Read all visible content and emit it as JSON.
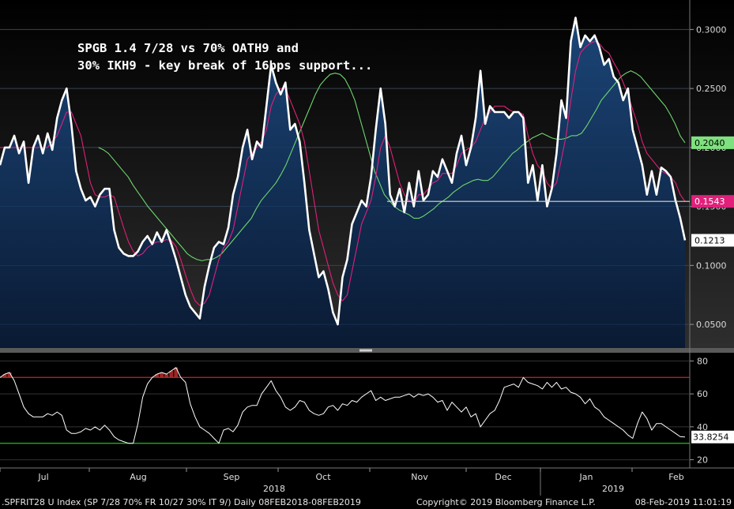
{
  "chart_data": [
    {
      "type": "line",
      "title_lines": [
        "SPGB 1.4 7/28 vs 70% OATH9 and",
        "30% IKH9 - key break of 16bps support..."
      ],
      "x": {
        "tick_labels": [
          "Jul",
          "Aug",
          "Sep",
          "Oct",
          "Nov",
          "Dec",
          "Jan",
          "Feb"
        ],
        "year_labels": [
          "2018",
          "2019"
        ]
      },
      "y": {
        "ylim": [
          0.03,
          0.325
        ],
        "tick_values": [
          0.05,
          0.1,
          0.15,
          0.2,
          0.25,
          0.3
        ],
        "tick_labels": [
          "0.0500",
          "0.1000",
          "0.1500",
          "0.2000",
          "0.2500",
          "0.3000"
        ],
        "side": "right"
      },
      "grid": true,
      "horizontal_line": {
        "value": 0.1543,
        "color": "#d9d9d9"
      },
      "series": [
        {
          "role": "spread",
          "color": "#ffffff",
          "area_fill": "#12345a",
          "last_value_label": "0.1213",
          "values": [
            0.185,
            0.2,
            0.2,
            0.21,
            0.195,
            0.205,
            0.17,
            0.2,
            0.21,
            0.195,
            0.212,
            0.198,
            0.225,
            0.24,
            0.25,
            0.22,
            0.18,
            0.165,
            0.155,
            0.158,
            0.15,
            0.16,
            0.165,
            0.165,
            0.13,
            0.115,
            0.11,
            0.108,
            0.108,
            0.112,
            0.12,
            0.125,
            0.118,
            0.128,
            0.12,
            0.13,
            0.118,
            0.105,
            0.09,
            0.075,
            0.065,
            0.06,
            0.055,
            0.082,
            0.1,
            0.115,
            0.12,
            0.118,
            0.132,
            0.16,
            0.175,
            0.2,
            0.215,
            0.19,
            0.205,
            0.2,
            0.235,
            0.27,
            0.255,
            0.245,
            0.255,
            0.215,
            0.22,
            0.205,
            0.17,
            0.13,
            0.11,
            0.09,
            0.095,
            0.08,
            0.06,
            0.05,
            0.09,
            0.105,
            0.135,
            0.145,
            0.155,
            0.15,
            0.175,
            0.215,
            0.25,
            0.22,
            0.16,
            0.15,
            0.165,
            0.145,
            0.17,
            0.15,
            0.18,
            0.155,
            0.16,
            0.18,
            0.175,
            0.19,
            0.18,
            0.17,
            0.195,
            0.21,
            0.185,
            0.2,
            0.225,
            0.265,
            0.22,
            0.235,
            0.23,
            0.23,
            0.23,
            0.225,
            0.23,
            0.23,
            0.225,
            0.17,
            0.185,
            0.155,
            0.185,
            0.15,
            0.165,
            0.195,
            0.24,
            0.225,
            0.29,
            0.31,
            0.285,
            0.295,
            0.29,
            0.295,
            0.285,
            0.27,
            0.275,
            0.26,
            0.255,
            0.24,
            0.25,
            0.215,
            0.2,
            0.185,
            0.16,
            0.18,
            0.16,
            0.183,
            0.18,
            0.175,
            0.155,
            0.14,
            0.1213
          ]
        },
        {
          "role": "short moving average",
          "color": "#e0207a",
          "last_value_label": "0.1543",
          "values": [
            0.2,
            0.2,
            0.2,
            0.2,
            0.2,
            0.2,
            0.2,
            0.2,
            0.2,
            0.2,
            0.2,
            0.205,
            0.21,
            0.22,
            0.23,
            0.23,
            0.22,
            0.21,
            0.19,
            0.17,
            0.16,
            0.158,
            0.158,
            0.16,
            0.158,
            0.145,
            0.132,
            0.12,
            0.112,
            0.108,
            0.11,
            0.115,
            0.118,
            0.12,
            0.12,
            0.122,
            0.121,
            0.116,
            0.105,
            0.092,
            0.08,
            0.07,
            0.066,
            0.068,
            0.075,
            0.09,
            0.105,
            0.115,
            0.12,
            0.13,
            0.15,
            0.17,
            0.19,
            0.195,
            0.2,
            0.205,
            0.215,
            0.235,
            0.245,
            0.25,
            0.25,
            0.24,
            0.23,
            0.22,
            0.205,
            0.18,
            0.155,
            0.13,
            0.115,
            0.1,
            0.085,
            0.075,
            0.07,
            0.075,
            0.095,
            0.115,
            0.135,
            0.145,
            0.155,
            0.175,
            0.2,
            0.21,
            0.2,
            0.185,
            0.17,
            0.16,
            0.155,
            0.152,
            0.16,
            0.16,
            0.165,
            0.17,
            0.172,
            0.178,
            0.178,
            0.178,
            0.185,
            0.195,
            0.198,
            0.2,
            0.205,
            0.215,
            0.225,
            0.23,
            0.235,
            0.235,
            0.235,
            0.232,
            0.23,
            0.23,
            0.228,
            0.21,
            0.195,
            0.185,
            0.18,
            0.17,
            0.165,
            0.17,
            0.19,
            0.21,
            0.24,
            0.265,
            0.28,
            0.285,
            0.288,
            0.29,
            0.288,
            0.283,
            0.28,
            0.272,
            0.265,
            0.255,
            0.245,
            0.232,
            0.22,
            0.205,
            0.195,
            0.19,
            0.185,
            0.18,
            0.178,
            0.175,
            0.17,
            0.16,
            0.1543
          ]
        },
        {
          "role": "long moving average",
          "color": "#6fd66f",
          "last_value_label": "0.2040",
          "values": [
            null,
            null,
            null,
            null,
            null,
            null,
            null,
            null,
            null,
            null,
            null,
            null,
            null,
            null,
            null,
            null,
            null,
            null,
            null,
            null,
            0.2,
            0.198,
            0.195,
            0.19,
            0.185,
            0.18,
            0.175,
            0.168,
            0.162,
            0.156,
            0.15,
            0.145,
            0.14,
            0.135,
            0.13,
            0.125,
            0.12,
            0.115,
            0.11,
            0.107,
            0.105,
            0.104,
            0.105,
            0.105,
            0.107,
            0.11,
            0.115,
            0.12,
            0.125,
            0.13,
            0.135,
            0.14,
            0.148,
            0.155,
            0.16,
            0.165,
            0.17,
            0.177,
            0.185,
            0.195,
            0.205,
            0.215,
            0.225,
            0.235,
            0.245,
            0.253,
            0.258,
            0.262,
            0.263,
            0.262,
            0.258,
            0.25,
            0.24,
            0.225,
            0.21,
            0.195,
            0.18,
            0.17,
            0.16,
            0.155,
            0.15,
            0.147,
            0.145,
            0.143,
            0.14,
            0.14,
            0.142,
            0.145,
            0.148,
            0.152,
            0.155,
            0.158,
            0.162,
            0.165,
            0.168,
            0.17,
            0.172,
            0.173,
            0.172,
            0.172,
            0.175,
            0.18,
            0.185,
            0.19,
            0.195,
            0.198,
            0.202,
            0.205,
            0.208,
            0.21,
            0.212,
            0.21,
            0.208,
            0.207,
            0.207,
            0.208,
            0.21,
            0.21,
            0.212,
            0.218,
            0.225,
            0.232,
            0.24,
            0.245,
            0.25,
            0.255,
            0.26,
            0.263,
            0.265,
            0.263,
            0.26,
            0.255,
            0.25,
            0.245,
            0.24,
            0.235,
            0.228,
            0.22,
            0.21,
            0.204
          ]
        }
      ]
    },
    {
      "type": "line",
      "y": {
        "ylim": [
          15,
          85
        ],
        "tick_values": [
          20,
          40,
          60,
          80
        ],
        "tick_labels": [
          "20",
          "40",
          "60",
          "80"
        ],
        "side": "right"
      },
      "grid": true,
      "reference_lines": [
        {
          "value": 70,
          "color": "#d02020"
        },
        {
          "value": 30,
          "color": "#20c020"
        }
      ],
      "series": [
        {
          "role": "oscillator",
          "color": "#ffffff",
          "last_value_label": "33.8254",
          "values": [
            70,
            72,
            73,
            68,
            60,
            52,
            48,
            46,
            46,
            46,
            48,
            47,
            49,
            47,
            38,
            36,
            36,
            37,
            39,
            38,
            40,
            38,
            41,
            38,
            34,
            32,
            31,
            30,
            30,
            42,
            58,
            66,
            70,
            72,
            73,
            72,
            74,
            76,
            70,
            67,
            54,
            46,
            40,
            38,
            36,
            33,
            30,
            38,
            39,
            37,
            41,
            49,
            52,
            53,
            53,
            60,
            64,
            68,
            62,
            58,
            52,
            50,
            52,
            56,
            55,
            50,
            48,
            47,
            48,
            52,
            53,
            50,
            54,
            53,
            56,
            55,
            58,
            60,
            62,
            56,
            58,
            56,
            57,
            58,
            58,
            59,
            60,
            58,
            60,
            59,
            60,
            58,
            55,
            56,
            50,
            55,
            52,
            49,
            52,
            46,
            48,
            40,
            44,
            48,
            50,
            56,
            64,
            65,
            66,
            64,
            70,
            67,
            66,
            65,
            63,
            67,
            64,
            67,
            63,
            64,
            61,
            60,
            58,
            54,
            57,
            52,
            50,
            46,
            44,
            42,
            40,
            38,
            35,
            33,
            42,
            49,
            45,
            38,
            42,
            42,
            40,
            38,
            36,
            34,
            33.8254
          ]
        }
      ]
    }
  ],
  "footer": {
    "left": ".SPFRIT28 U Index (SP 7/28 70% FR 10/27 30% IT 9/)  Daily 08FEB2018-08FEB2019",
    "center": "Copyright© 2019 Bloomberg Finance L.P.",
    "right": "08-Feb-2019 11:01:19"
  }
}
